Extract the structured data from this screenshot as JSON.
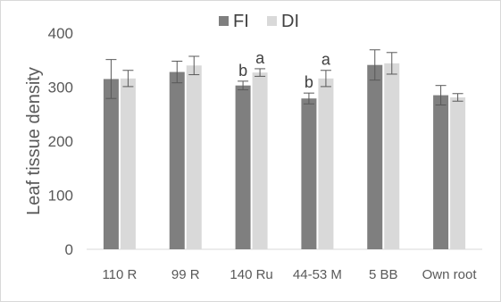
{
  "chart_data": {
    "type": "bar",
    "title": "",
    "xlabel": "",
    "ylabel": "Leaf tissue density",
    "ylim": [
      0,
      400
    ],
    "yticks": [
      0,
      100,
      200,
      300,
      400
    ],
    "grid": false,
    "legend_position": "top",
    "categories": [
      "110 R",
      "99 R",
      "140 Ru",
      "44-53 M",
      "5 BB",
      "Own root"
    ],
    "series": [
      {
        "name": "FI",
        "color": "#7f7f7f",
        "values": [
          315,
          328,
          303,
          279,
          341,
          285
        ],
        "errors": [
          36,
          20,
          8,
          10,
          28,
          18
        ],
        "annotations": [
          "",
          "",
          "b",
          "b",
          "",
          ""
        ]
      },
      {
        "name": "DI",
        "color": "#d9d9d9",
        "values": [
          316,
          340,
          327,
          316,
          344,
          281
        ],
        "errors": [
          15,
          17,
          7,
          15,
          20,
          7
        ],
        "annotations": [
          "",
          "",
          "a",
          "a",
          "",
          ""
        ]
      }
    ]
  }
}
